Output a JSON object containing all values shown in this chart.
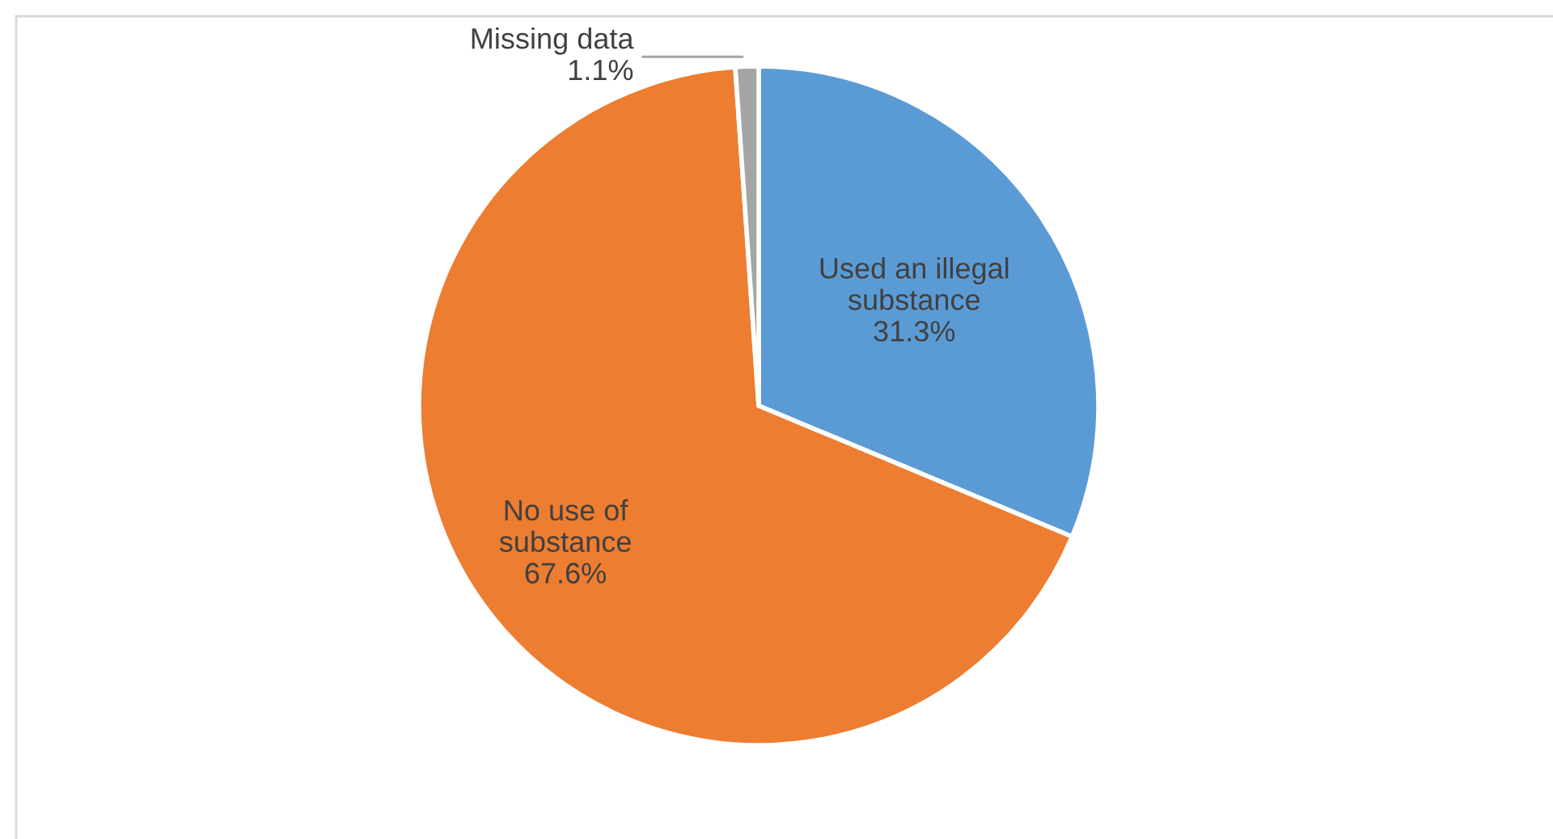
{
  "chart_data": {
    "type": "pie",
    "categories": [
      "Used an illegal substance",
      "No use of substance",
      "Missing data"
    ],
    "values": [
      31.3,
      67.6,
      1.1
    ],
    "colors": [
      "#5b9bd5",
      "#ed7d31",
      "#a5a5a5"
    ],
    "value_labels": [
      "31.3%",
      "67.6%",
      "1.1%"
    ]
  }
}
